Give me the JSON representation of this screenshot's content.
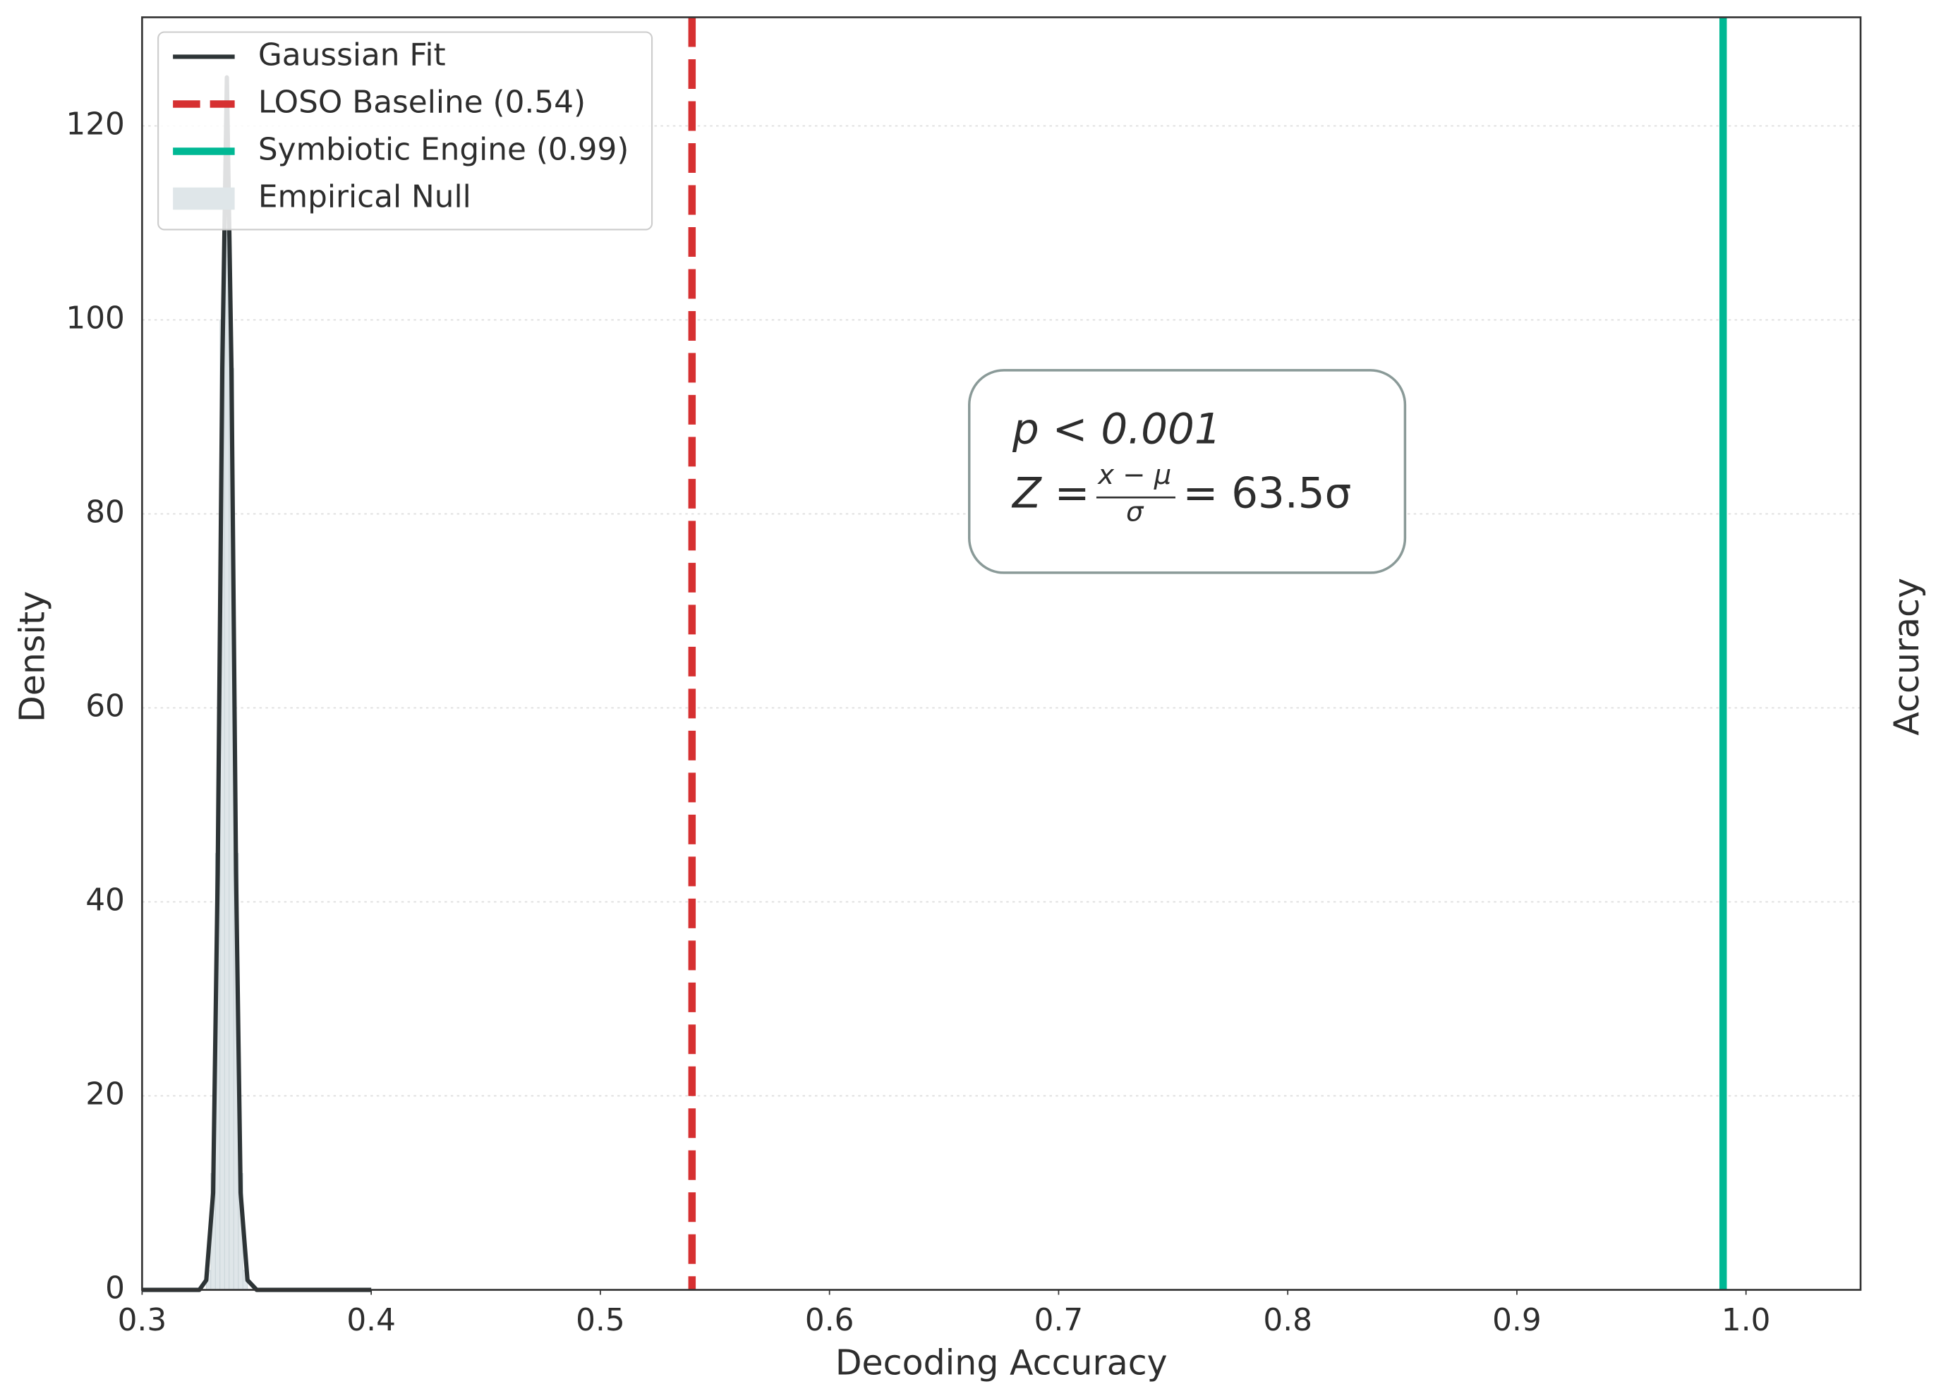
{
  "chart_data": {
    "type": "line",
    "xlabel": "Decoding Accuracy",
    "ylabel": "Density",
    "y2label": "Accuracy",
    "xlim": [
      0.3,
      1.05
    ],
    "ylim": [
      0,
      131.2
    ],
    "xticks": [
      0.3,
      0.4,
      0.5,
      0.6,
      0.7,
      0.8,
      0.9,
      {
        "value": 1,
        "label": "1.0"
      }
    ],
    "yticks": [
      0,
      20,
      40,
      60,
      80,
      100,
      120
    ],
    "grid": true,
    "legend": "upper left",
    "series": [
      {
        "name": "Gaussian Fit",
        "color": "#2d3436",
        "x": [
          0.3,
          0.325,
          0.328,
          0.331,
          0.333,
          0.335,
          0.337,
          0.339,
          0.341,
          0.343,
          0.346,
          0.35,
          0.4
        ],
        "values": [
          0,
          0,
          1,
          10,
          43,
          95,
          125,
          95,
          43,
          10,
          1,
          0,
          0
        ]
      }
    ],
    "vlines": [
      {
        "name": "LOSO Baseline (0.54)",
        "value": 0.54,
        "color": "#d63031",
        "style": "dashed"
      },
      {
        "name": "Symbiotic Engine (0.99)",
        "value": 0.99,
        "color": "#00b894",
        "style": "solid"
      }
    ],
    "histogram": {
      "name": "Empirical Null",
      "color": "#dfe6e9",
      "bins": [
        0.328,
        0.33,
        0.332,
        0.334,
        0.336,
        0.338,
        0.34,
        0.342,
        0.344,
        0.346
      ],
      "counts": [
        2,
        12,
        45,
        100,
        120,
        95,
        45,
        12,
        2
      ]
    },
    "annotation": {
      "line1": "p < 0.001",
      "z": "Z =",
      "numerator": "x − μ",
      "denominator": "σ",
      "result": "= 63.5σ"
    }
  }
}
